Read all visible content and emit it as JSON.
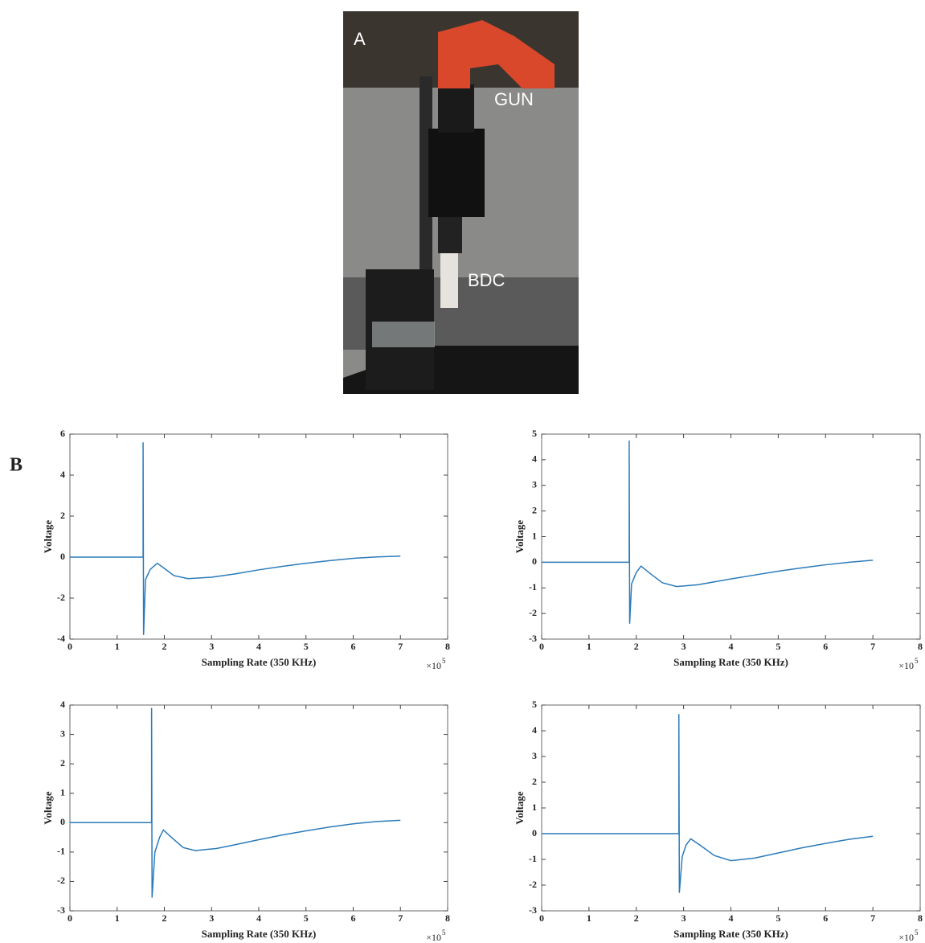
{
  "panel_labels": [
    "A",
    "B"
  ],
  "photo": {
    "labels": [
      "GUN",
      "BDC"
    ]
  },
  "chart_data": [
    {
      "type": "line",
      "x_label": "Sampling Rate (350 KHz)",
      "y_label": "Voltage",
      "x_multiplier": {
        "base": "×10",
        "exponent": "5"
      },
      "color": "#2b7bba",
      "xlim": [
        0,
        8
      ],
      "xticks": [
        0,
        1,
        2,
        3,
        4,
        5,
        6,
        7,
        8
      ],
      "ylim": [
        -4,
        6
      ],
      "yticks": [
        -4,
        -2,
        0,
        2,
        4,
        6
      ],
      "x": [
        0,
        1.55,
        1.55,
        1.56,
        1.6,
        1.7,
        1.85,
        2.0,
        2.2,
        2.5,
        3,
        3.5,
        4,
        4.5,
        5,
        5.5,
        6,
        6.5,
        7
      ],
      "values": [
        0,
        0,
        5.6,
        -3.8,
        -1.1,
        -0.6,
        -0.3,
        -0.55,
        -0.9,
        -1.05,
        -0.98,
        -0.82,
        -0.62,
        -0.45,
        -0.3,
        -0.17,
        -0.06,
        0.01,
        0.05
      ]
    },
    {
      "type": "line",
      "x_label": "Sampling Rate (350 KHz)",
      "y_label": "Voltage",
      "x_multiplier": {
        "base": "×10",
        "exponent": "5"
      },
      "color": "#2b7bba",
      "xlim": [
        0,
        8
      ],
      "xticks": [
        0,
        1,
        2,
        3,
        4,
        5,
        6,
        7,
        8
      ],
      "ylim": [
        -3,
        5
      ],
      "yticks": [
        -3,
        -2,
        -1,
        0,
        1,
        2,
        3,
        4,
        5
      ],
      "x": [
        0,
        1.85,
        1.85,
        1.86,
        1.9,
        2.0,
        2.1,
        2.3,
        2.55,
        2.85,
        3.3,
        4,
        4.5,
        5,
        5.5,
        6,
        6.5,
        7
      ],
      "values": [
        0,
        0,
        4.75,
        -2.4,
        -0.85,
        -0.4,
        -0.15,
        -0.45,
        -0.8,
        -0.95,
        -0.88,
        -0.65,
        -0.5,
        -0.35,
        -0.22,
        -0.1,
        0,
        0.08
      ]
    },
    {
      "type": "line",
      "x_label": "Sampling Rate (350 KHz)",
      "y_label": "Voltage",
      "x_multiplier": {
        "base": "×10",
        "exponent": "5"
      },
      "color": "#2b7bba",
      "xlim": [
        0,
        8
      ],
      "xticks": [
        0,
        1,
        2,
        3,
        4,
        5,
        6,
        7,
        8
      ],
      "ylim": [
        -3,
        4
      ],
      "yticks": [
        -3,
        -2,
        -1,
        0,
        1,
        2,
        3,
        4
      ],
      "x": [
        0,
        1.73,
        1.73,
        1.74,
        1.8,
        1.9,
        1.98,
        2.15,
        2.4,
        2.65,
        3.1,
        3.5,
        4,
        4.5,
        5,
        5.5,
        6,
        6.5,
        7
      ],
      "values": [
        0,
        0,
        3.9,
        -2.55,
        -1.0,
        -0.5,
        -0.25,
        -0.5,
        -0.85,
        -0.95,
        -0.88,
        -0.75,
        -0.58,
        -0.42,
        -0.28,
        -0.15,
        -0.04,
        0.04,
        0.08
      ]
    },
    {
      "type": "line",
      "x_label": "Sampling Rate (350 KHz)",
      "y_label": "Voltage",
      "x_multiplier": {
        "base": "×10",
        "exponent": "5"
      },
      "color": "#2b7bba",
      "xlim": [
        0,
        8
      ],
      "xticks": [
        0,
        1,
        2,
        3,
        4,
        5,
        6,
        7,
        8
      ],
      "ylim": [
        -3,
        5
      ],
      "yticks": [
        -3,
        -2,
        -1,
        0,
        1,
        2,
        3,
        4,
        5
      ],
      "x": [
        0,
        2.9,
        2.9,
        2.91,
        2.97,
        3.05,
        3.15,
        3.35,
        3.65,
        4.0,
        4.5,
        5,
        5.5,
        6,
        6.5,
        7
      ],
      "values": [
        0,
        0,
        4.65,
        -2.3,
        -0.9,
        -0.45,
        -0.2,
        -0.45,
        -0.85,
        -1.05,
        -0.95,
        -0.75,
        -0.55,
        -0.38,
        -0.22,
        -0.1
      ]
    }
  ]
}
